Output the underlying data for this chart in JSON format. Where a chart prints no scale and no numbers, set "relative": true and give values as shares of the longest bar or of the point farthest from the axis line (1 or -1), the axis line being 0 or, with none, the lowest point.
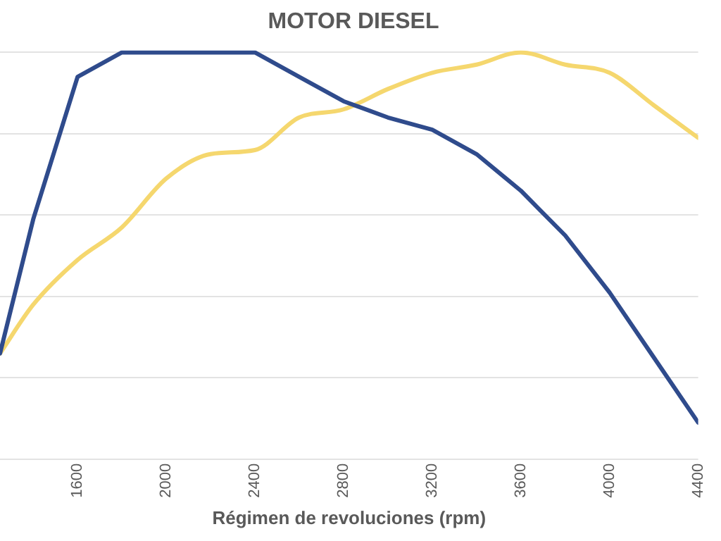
{
  "chart_data": {
    "type": "line",
    "title": "MOTOR DIESEL",
    "xlabel": "Régimen de revoluciones (rpm)",
    "relative": true,
    "grid": "y",
    "legend": false,
    "tick_labels": "x",
    "marker": "none",
    "xlim": [
      1250,
      4400
    ],
    "xticks": [
      1600,
      2000,
      2400,
      2800,
      3200,
      3600,
      4000,
      4400
    ],
    "series": [
      {
        "color": "#2f4b8c",
        "x": [
          1250,
          1400,
          1600,
          1800,
          2000,
          2200,
          2400,
          2600,
          2800,
          3000,
          3200,
          3400,
          3600,
          3800,
          4000,
          4200,
          4400
        ],
        "values": [
          0.26,
          0.59,
          0.94,
          1,
          1,
          1,
          1,
          0.94,
          0.88,
          0.84,
          0.81,
          0.75,
          0.66,
          0.55,
          0.41,
          0.25,
          0.09
        ]
      },
      {
        "color": "#f5d76e",
        "x": [
          1250,
          1400,
          1600,
          1800,
          2000,
          2200,
          2400,
          2600,
          2800,
          3000,
          3200,
          3400,
          3600,
          3800,
          4000,
          4200,
          4400
        ],
        "values": [
          0.26,
          0.38,
          0.49,
          0.57,
          0.69,
          0.75,
          0.76,
          0.84,
          0.86,
          0.91,
          0.95,
          0.97,
          1,
          0.97,
          0.95,
          0.87,
          0.79
        ]
      }
    ]
  }
}
